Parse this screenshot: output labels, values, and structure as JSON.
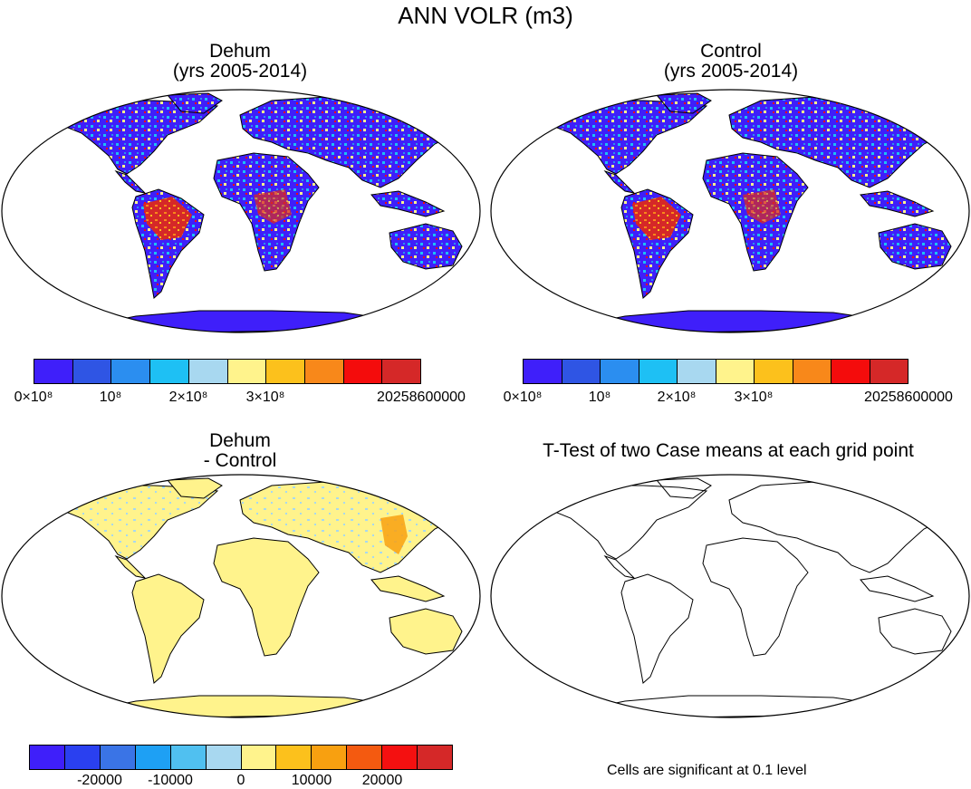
{
  "title": "ANN VOLR (m3)",
  "panels": [
    {
      "id": "dehum",
      "title_line1": "Dehum",
      "title_line2": "(yrs 2005-2014)"
    },
    {
      "id": "control",
      "title_line1": "Control",
      "title_line2": "(yrs 2005-2014)"
    },
    {
      "id": "diff",
      "title_line1": "Dehum",
      "title_line2": "- Control"
    },
    {
      "id": "ttest",
      "title_line1": "T-Test of two Case means at each grid point",
      "title_line2": ""
    }
  ],
  "colorbar_top": {
    "colors": [
      "#3f1ffa",
      "#2f55e4",
      "#2b8ef0",
      "#1ec0f4",
      "#a8d8f0",
      "#fff38c",
      "#fcc11c",
      "#f8881a",
      "#f40c0c",
      "#d52828"
    ],
    "labels": [
      "0×10⁸",
      "10⁸",
      "2×10⁸",
      "3×10⁸",
      "20258600000"
    ]
  },
  "colorbar_diff": {
    "colors": [
      "#3f1ffa",
      "#2a40f0",
      "#3a74e6",
      "#1ea0f4",
      "#50c0f0",
      "#a8d8f0",
      "#fff38c",
      "#fcc11c",
      "#f8a010",
      "#f45a10",
      "#f41010",
      "#d52828"
    ],
    "labels": [
      "-20000",
      "-10000",
      "0",
      "10000",
      "20000"
    ]
  },
  "significance_note": "Cells are significant at 0.1 level",
  "colors": {
    "ocean": "#ffffff",
    "land_low": "#3f1ffa",
    "land_diff": "#fff38c",
    "border": "#000000"
  }
}
